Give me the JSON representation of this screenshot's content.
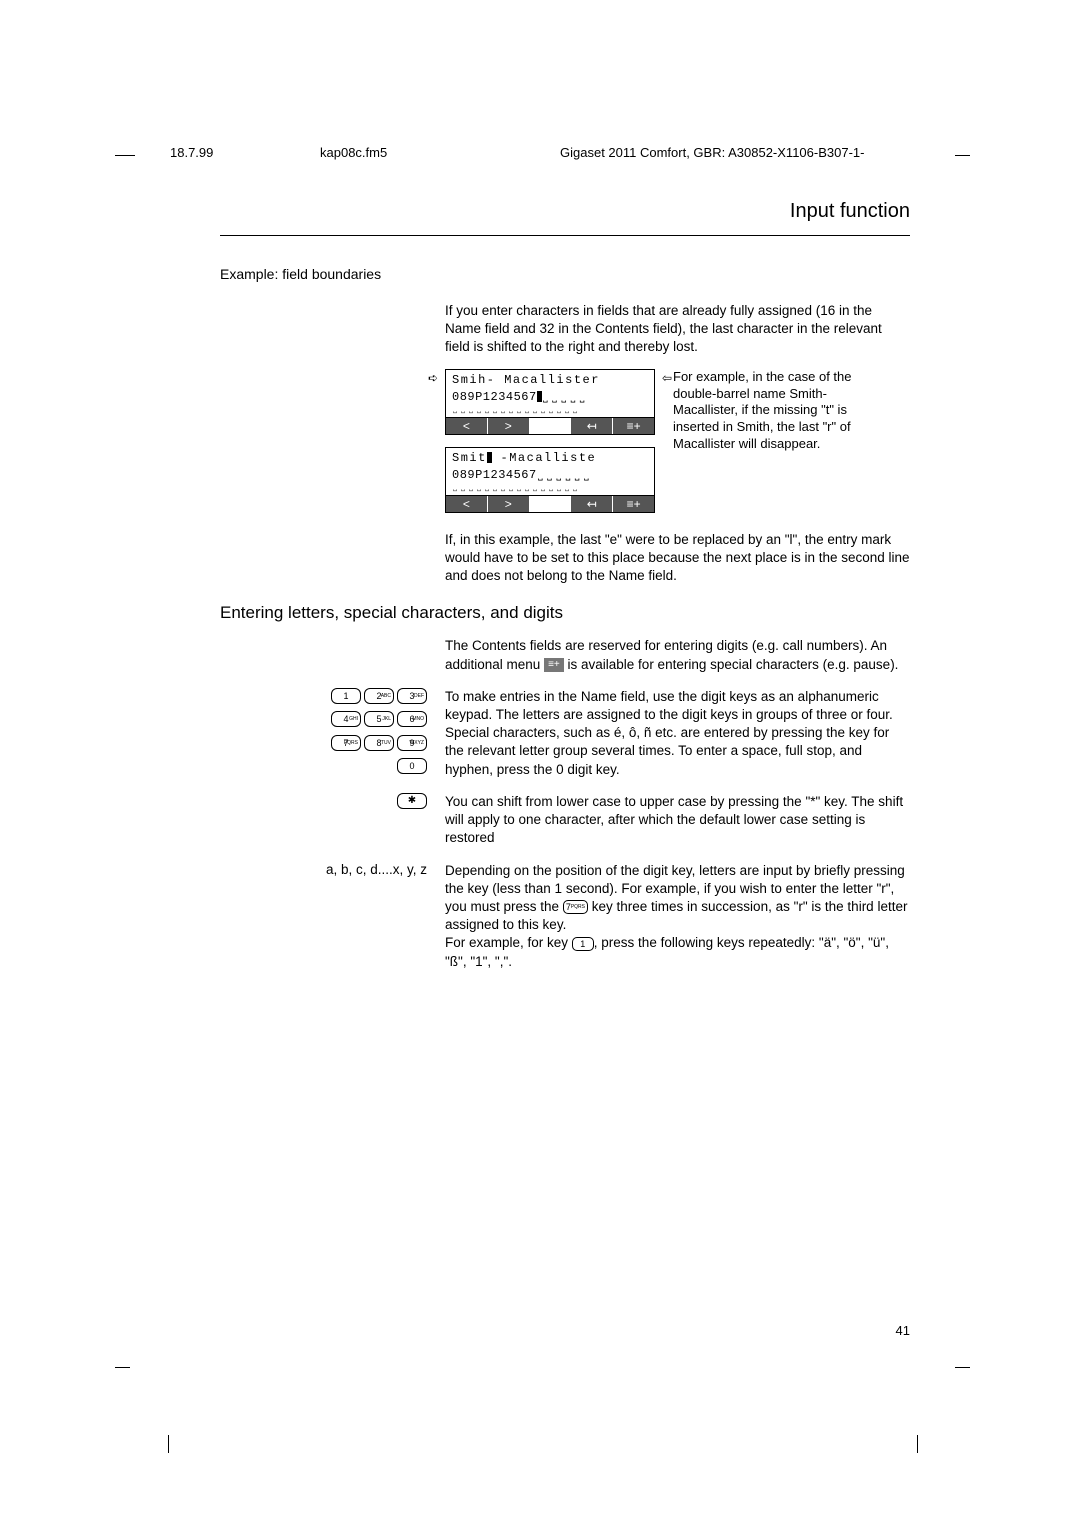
{
  "header": {
    "date": "18.7.99",
    "file": "kap08c.fm5",
    "title": "Gigaset 2011 Comfort, GBR: A30852-X1106-B307-1-"
  },
  "page_title": "Input function",
  "example_heading": "Example: field boundaries",
  "intro_para": "If you enter characters in fields that are already fully assigned (16 in the Name field and 32 in the Contents field), the last character in the relevant field is shifted to the right and thereby lost.",
  "disp1": {
    "line1": "Smih- Macallister",
    "line2": "089P1234567"
  },
  "disp2": {
    "line1": "Smit  -Macalliste",
    "line2": "089P1234567"
  },
  "side_note": "For example, in the case of the double-barrel name Smith-Macallister, if the missing \"t\" is inserted in Smith, the last \"r\" of Macallister will disappear.",
  "post_disp_para": "If, in this example, the last \"e\" were to be replaced by an \"l\", the entry mark would have to be set to this place because the next place is in the second line and does not belong to the Name field.",
  "h2": "Entering letters, special characters, and digits",
  "contents_para_a": "The Contents fields are reserved for entering digits (e.g. call numbers). An additional menu ",
  "contents_para_b": " is available for entering special characters (e.g. pause).",
  "keypad_para": "To make entries in the Name field, use the digit keys as an alphanumeric keypad. The letters are assigned to the digit keys in groups of three or four. Special characters, such as é, ô, ñ etc. are entered by pressing the key for the relevant letter group several times. To enter a space, full stop, and hyphen, press the 0 digit key.",
  "star_para": "You can shift from lower case to upper case by pressing the \"*\" key. The shift will apply to one character, after which the default lower case setting is restored",
  "abc_label": "a, b, c, d....x, y, z",
  "abc_para_a": "Depending on the position of the digit key, letters are input by briefly pressing the key (less than 1 second). For example, if you wish to enter the letter \"r\", you must press the ",
  "abc_para_b": " key three times in succession, as \"r\" is the third letter assigned to this key.",
  "repeat_para_a": "For example, for key ",
  "repeat_para_b": ", press the following keys repeatedly: \"ä\", \"ö\", \"ü\", \"ß\", \"1\", \",\".",
  "keys": {
    "k1": "1",
    "k2": "2",
    "k3": "3",
    "k4": "4",
    "k5": "5",
    "k6": "6",
    "k7": "7",
    "k8": "8",
    "k9": "9",
    "k0": "0",
    "sup2": "ABC",
    "sup3": "DEF",
    "sup4": "GHI",
    "sup5": "JKL",
    "sup6": "MNO",
    "sup7": "PQRS",
    "sup8": "TUV",
    "sup9": "WXYZ",
    "star": "✱",
    "inline7": "7",
    "inline1": "1"
  },
  "soft": {
    "lt": "<",
    "gt": ">",
    "back": "↤",
    "menu": "≡+"
  },
  "page_num": "41"
}
